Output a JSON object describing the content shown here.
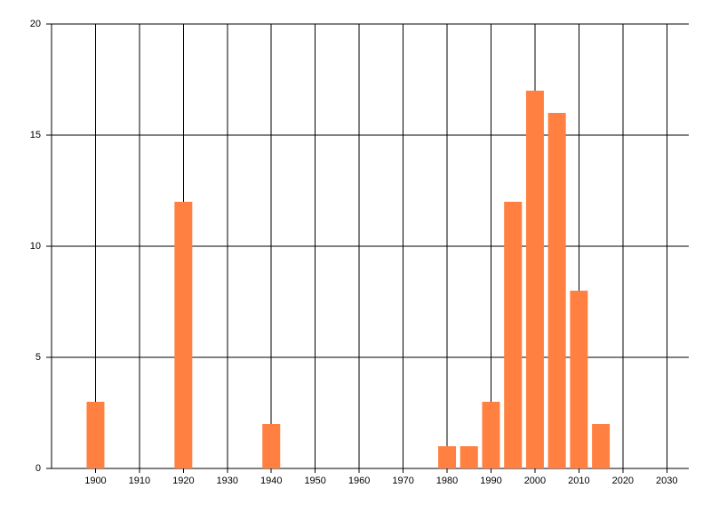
{
  "chart_data": {
    "type": "bar",
    "x": [
      1900,
      1920,
      1940,
      1980,
      1985,
      1990,
      1995,
      2000,
      2005,
      2010,
      2015
    ],
    "values": [
      3,
      12,
      2,
      1,
      1,
      3,
      12,
      17,
      16,
      8,
      2
    ],
    "color": "#ff8040",
    "xlim": [
      1890,
      2035
    ],
    "xticks": [
      1900,
      1910,
      1920,
      1930,
      1940,
      1950,
      1960,
      1970,
      1980,
      1990,
      2000,
      2010,
      2020,
      2030
    ],
    "ylim": [
      0,
      20
    ],
    "yticks": [
      0,
      5,
      10,
      15,
      20
    ],
    "grid": true
  }
}
